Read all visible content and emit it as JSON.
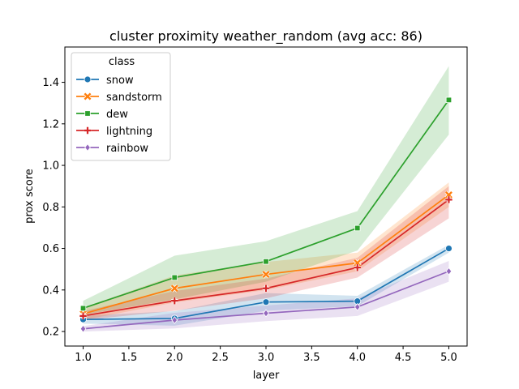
{
  "chart_data": {
    "type": "line",
    "title": "cluster proximity weather_random (avg acc: 86)",
    "xlabel": "layer",
    "ylabel": "prox score",
    "xlim": [
      0.8,
      5.2
    ],
    "ylim": [
      0.13,
      1.57
    ],
    "x_ticks": [
      1.0,
      1.5,
      2.0,
      2.5,
      3.0,
      3.5,
      4.0,
      4.5,
      5.0
    ],
    "x_tick_labels": [
      "1.0",
      "1.5",
      "2.0",
      "2.5",
      "3.0",
      "3.5",
      "4.0",
      "4.5",
      "5.0"
    ],
    "y_ticks": [
      0.2,
      0.4,
      0.6,
      0.8,
      1.0,
      1.2,
      1.4
    ],
    "y_tick_labels": [
      "0.2",
      "0.4",
      "0.6",
      "0.8",
      "1.0",
      "1.2",
      "1.4"
    ],
    "legend": {
      "title": "class",
      "placement": "top-left"
    },
    "grid": false,
    "x": [
      1,
      2,
      3,
      4,
      5
    ],
    "series": [
      {
        "name": "snow",
        "color": "#1f77b4",
        "marker": "circle",
        "values": [
          0.258,
          0.263,
          0.342,
          0.346,
          0.6
        ],
        "lower": [
          0.238,
          0.228,
          0.3,
          0.322,
          0.58
        ],
        "upper": [
          0.276,
          0.298,
          0.385,
          0.372,
          0.618
        ]
      },
      {
        "name": "sandstorm",
        "color": "#ff7f0e",
        "marker": "x",
        "values": [
          0.285,
          0.408,
          0.475,
          0.53,
          0.858
        ],
        "lower": [
          0.255,
          0.34,
          0.4,
          0.49,
          0.8
        ],
        "upper": [
          0.315,
          0.47,
          0.535,
          0.58,
          0.918
        ]
      },
      {
        "name": "dew",
        "color": "#2ca02c",
        "marker": "square",
        "values": [
          0.312,
          0.46,
          0.537,
          0.698,
          1.315
        ],
        "lower": [
          0.28,
          0.355,
          0.44,
          0.59,
          1.148
        ],
        "upper": [
          0.348,
          0.565,
          0.635,
          0.78,
          1.478
        ]
      },
      {
        "name": "lightning",
        "color": "#d62728",
        "marker": "plus",
        "values": [
          0.275,
          0.348,
          0.408,
          0.508,
          0.835
        ],
        "lower": [
          0.255,
          0.3,
          0.36,
          0.46,
          0.745
        ],
        "upper": [
          0.298,
          0.395,
          0.455,
          0.555,
          0.9
        ]
      },
      {
        "name": "rainbow",
        "color": "#9467bd",
        "marker": "diamond",
        "values": [
          0.213,
          0.255,
          0.288,
          0.318,
          0.49
        ],
        "lower": [
          0.2,
          0.215,
          0.25,
          0.275,
          0.44
        ],
        "upper": [
          0.226,
          0.29,
          0.325,
          0.36,
          0.54
        ]
      }
    ]
  }
}
